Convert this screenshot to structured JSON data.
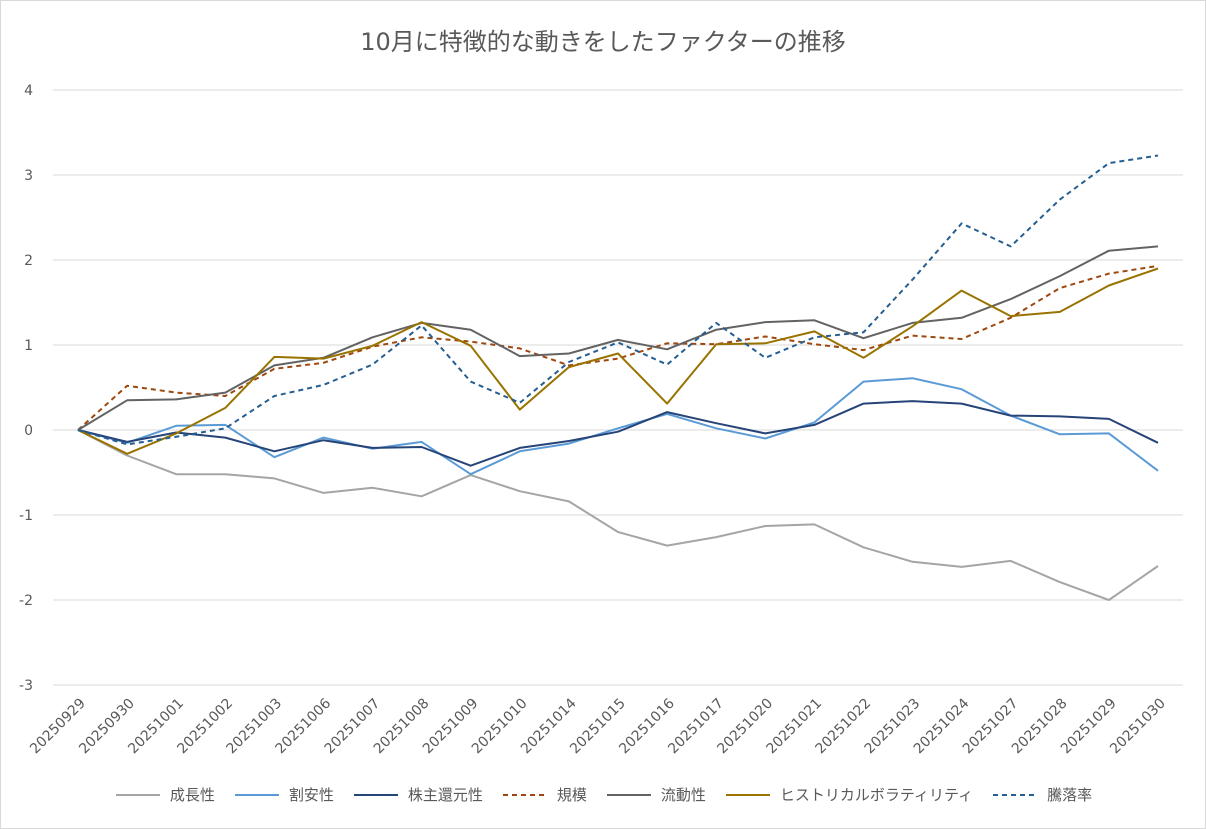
{
  "chart_data": {
    "type": "line",
    "title": "10月に特徴的な動きをしたファクターの推移",
    "xlabel": "",
    "ylabel": "",
    "ylim": [
      -3,
      4
    ],
    "yticks": [
      4,
      3,
      2,
      1,
      0,
      -1,
      -2,
      -3
    ],
    "grid": true,
    "legend_position": "bottom",
    "categories": [
      "20250929",
      "20250930",
      "20251001",
      "20251002",
      "20251003",
      "20251006",
      "20251007",
      "20251008",
      "20251009",
      "20251010",
      "20251014",
      "20251015",
      "20251016",
      "20251017",
      "20251020",
      "20251021",
      "20251022",
      "20251023",
      "20251024",
      "20251027",
      "20251028",
      "20251029",
      "20251030"
    ],
    "series": [
      {
        "name": "成長性",
        "color": "#a5a5a5",
        "dash": "solid",
        "values": [
          0,
          -0.3,
          -0.52,
          -0.52,
          -0.57,
          -0.74,
          -0.68,
          -0.78,
          -0.53,
          -0.72,
          -0.84,
          -1.2,
          -1.36,
          -1.26,
          -1.13,
          -1.11,
          -1.38,
          -1.55,
          -1.61,
          -1.54,
          -1.79,
          -2.0,
          -1.6
        ]
      },
      {
        "name": "割安性",
        "color": "#5b9bd5",
        "dash": "solid",
        "values": [
          0,
          -0.15,
          0.05,
          0.06,
          -0.32,
          -0.09,
          -0.22,
          -0.14,
          -0.52,
          -0.25,
          -0.16,
          0.02,
          0.19,
          0.02,
          -0.1,
          0.09,
          0.57,
          0.61,
          0.48,
          0.17,
          -0.05,
          -0.04,
          -0.48
        ]
      },
      {
        "name": "株主還元性",
        "color": "#264478",
        "dash": "solid",
        "values": [
          0,
          -0.14,
          -0.03,
          -0.09,
          -0.25,
          -0.12,
          -0.21,
          -0.2,
          -0.42,
          -0.21,
          -0.13,
          -0.02,
          0.21,
          0.08,
          -0.04,
          0.06,
          0.31,
          0.34,
          0.31,
          0.17,
          0.16,
          0.13,
          -0.15
        ]
      },
      {
        "name": "規模",
        "color": "#9e480e",
        "dash": "dashed",
        "values": [
          0,
          0.52,
          0.44,
          0.4,
          0.72,
          0.79,
          0.98,
          1.09,
          1.04,
          0.96,
          0.76,
          0.84,
          1.02,
          1.01,
          1.1,
          1.01,
          0.94,
          1.11,
          1.07,
          1.32,
          1.67,
          1.84,
          1.93
        ]
      },
      {
        "name": "流動性",
        "color": "#636363",
        "dash": "solid",
        "values": [
          0,
          0.35,
          0.36,
          0.44,
          0.76,
          0.85,
          1.09,
          1.26,
          1.18,
          0.87,
          0.9,
          1.06,
          0.95,
          1.18,
          1.27,
          1.29,
          1.08,
          1.26,
          1.32,
          1.54,
          1.81,
          2.11,
          2.16
        ]
      },
      {
        "name": "ヒストリカルボラティリティ",
        "color": "#997300",
        "dash": "solid",
        "values": [
          0,
          -0.28,
          -0.04,
          0.26,
          0.86,
          0.84,
          0.99,
          1.27,
          0.99,
          0.24,
          0.74,
          0.9,
          0.31,
          1.01,
          1.02,
          1.16,
          0.85,
          1.22,
          1.64,
          1.34,
          1.39,
          1.7,
          1.9
        ]
      },
      {
        "name": "騰落率",
        "color": "#255e91",
        "dash": "dashed",
        "values": [
          0,
          -0.17,
          -0.08,
          0.02,
          0.4,
          0.53,
          0.77,
          1.23,
          0.57,
          0.32,
          0.8,
          1.03,
          0.77,
          1.26,
          0.85,
          1.09,
          1.15,
          1.77,
          2.43,
          2.16,
          2.71,
          3.14,
          3.23
        ]
      }
    ]
  }
}
